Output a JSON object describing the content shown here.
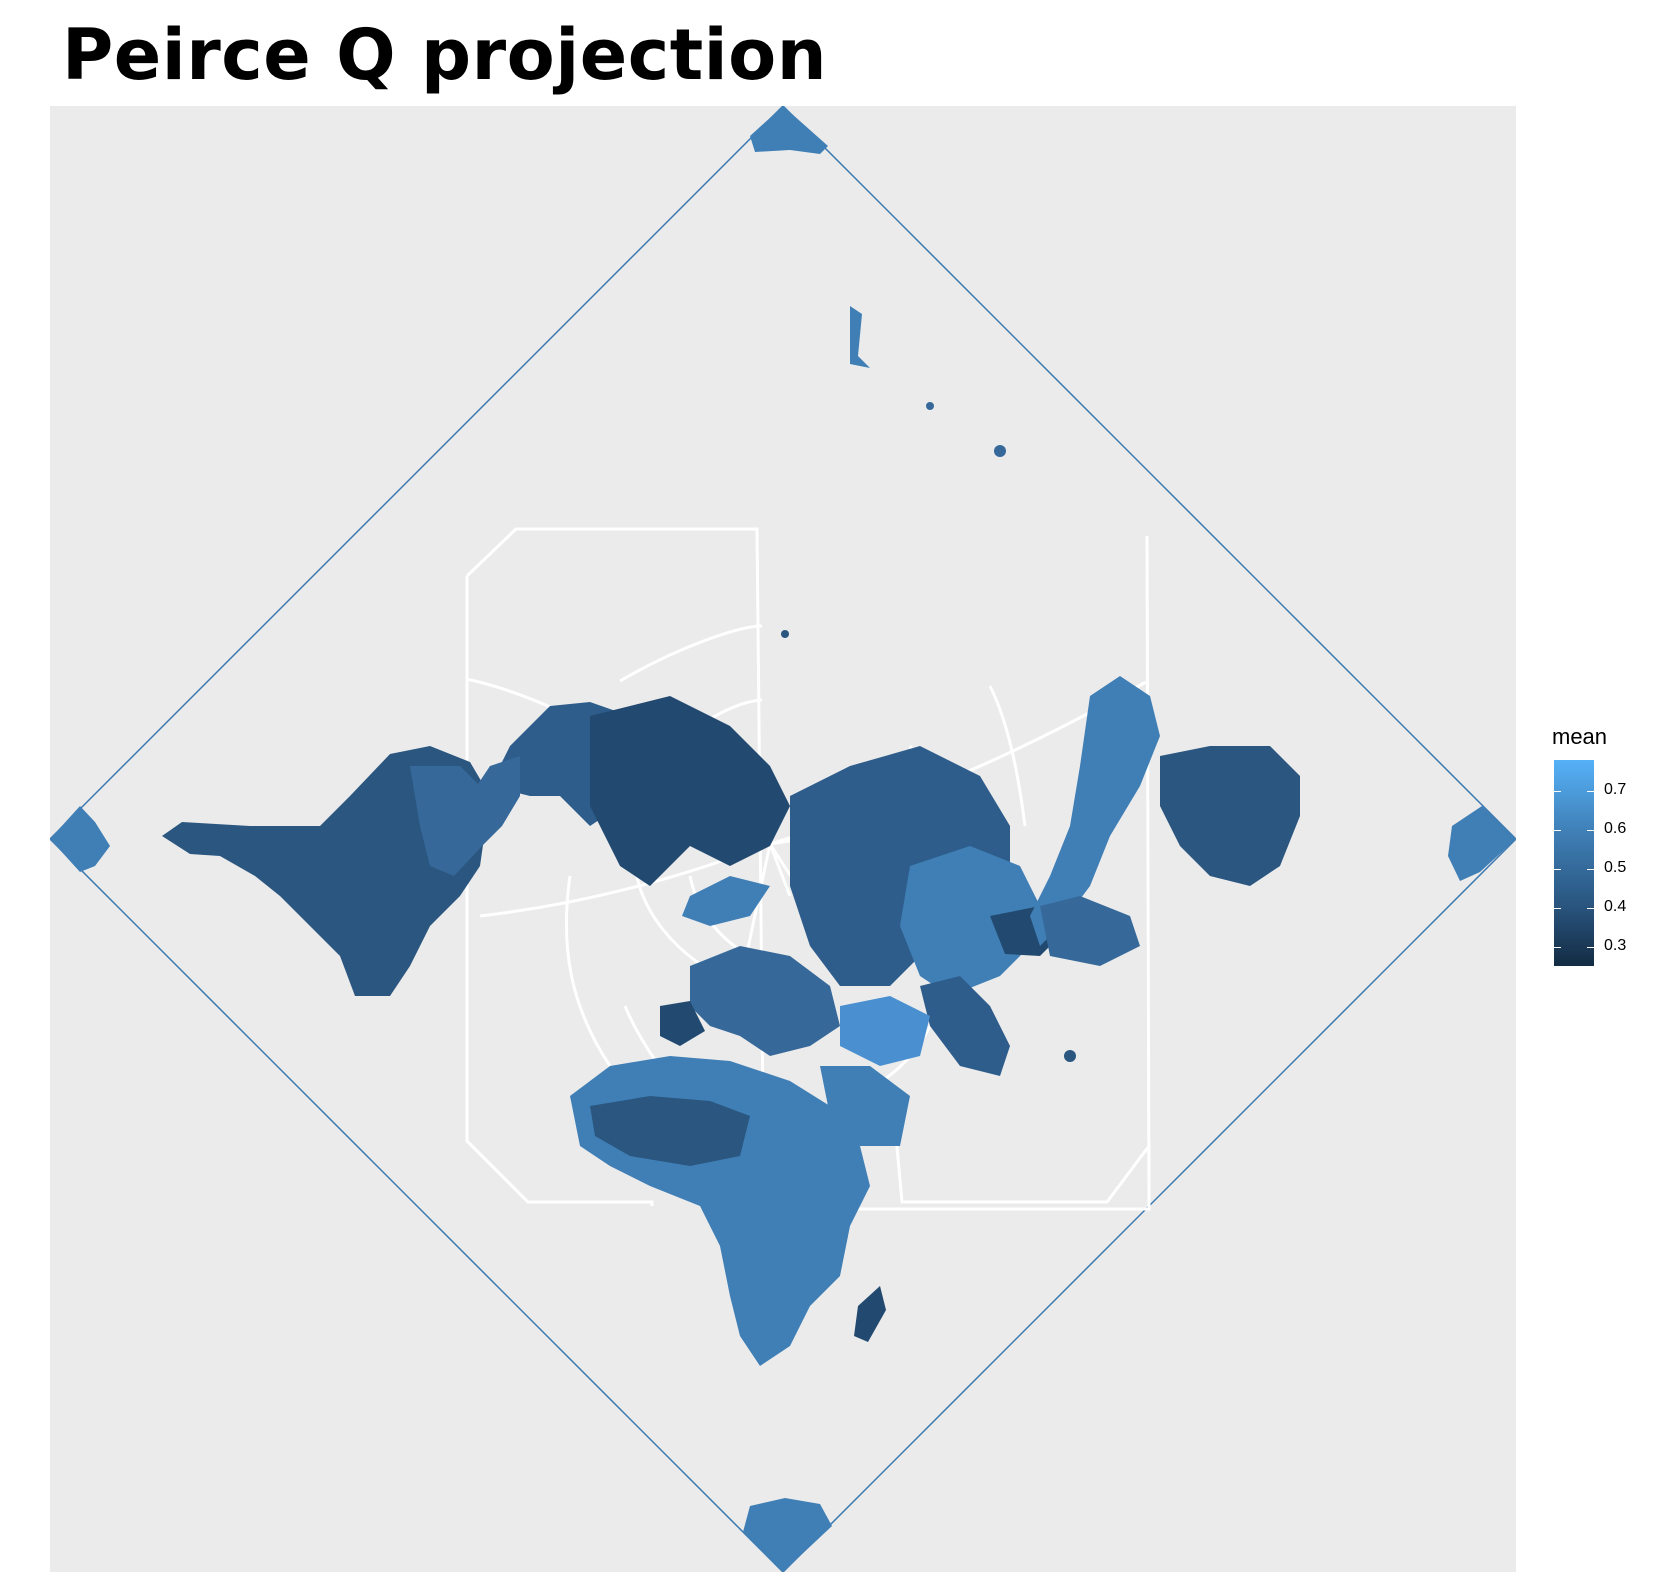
{
  "title": "Peirce Q projection",
  "legend": {
    "title": "mean",
    "ticks": [
      {
        "label": "0.7",
        "value": 0.7
      },
      {
        "label": "0.6",
        "value": 0.6
      },
      {
        "label": "0.5",
        "value": 0.5
      },
      {
        "label": "0.4",
        "value": 0.4
      },
      {
        "label": "0.3",
        "value": 0.3
      }
    ],
    "range": [
      0.25,
      0.78
    ],
    "colors": {
      "low": "#132b43",
      "high": "#56b1f7"
    }
  },
  "colors": {
    "panel_background": "#ebebeb",
    "graticule": "#ffffff",
    "frame_outline": "#3b78b0",
    "ocean_outside": "#ffffff"
  }
}
